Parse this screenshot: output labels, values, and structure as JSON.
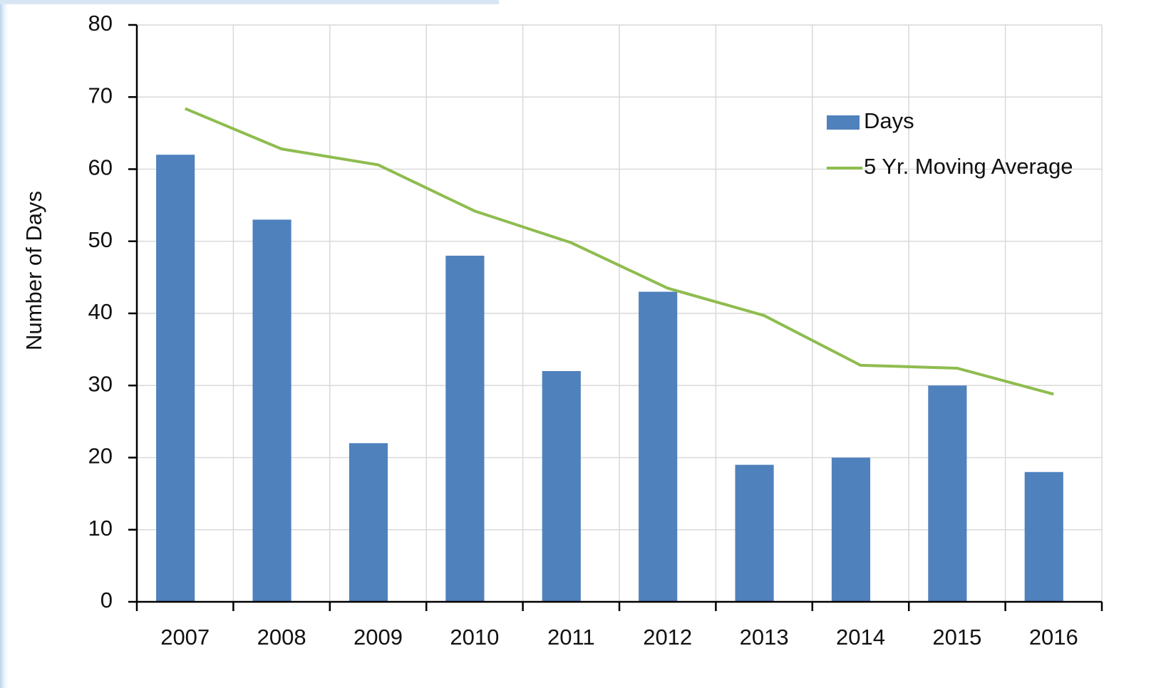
{
  "chart_data": {
    "type": "bar",
    "y_axis_label": "Number of Days",
    "categories": [
      "2007",
      "2008",
      "2009",
      "2010",
      "2011",
      "2012",
      "2013",
      "2014",
      "2015",
      "2016"
    ],
    "series": [
      {
        "name": "Days",
        "type": "bar",
        "color": "#4f81bd",
        "values": [
          62,
          53,
          22,
          48,
          32,
          43,
          19,
          20,
          30,
          18
        ]
      },
      {
        "name": "5 Yr. Moving Average",
        "type": "line",
        "color": "#8fbc4f",
        "values": [
          68.4,
          62.8,
          60.6,
          54.2,
          49.8,
          43.5,
          39.7,
          32.8,
          32.4,
          28.8
        ]
      }
    ],
    "ylim": [
      0,
      80
    ],
    "yticks": [
      0,
      10,
      20,
      30,
      40,
      50,
      60,
      70,
      80
    ],
    "grid": true,
    "legend": "upper right"
  }
}
